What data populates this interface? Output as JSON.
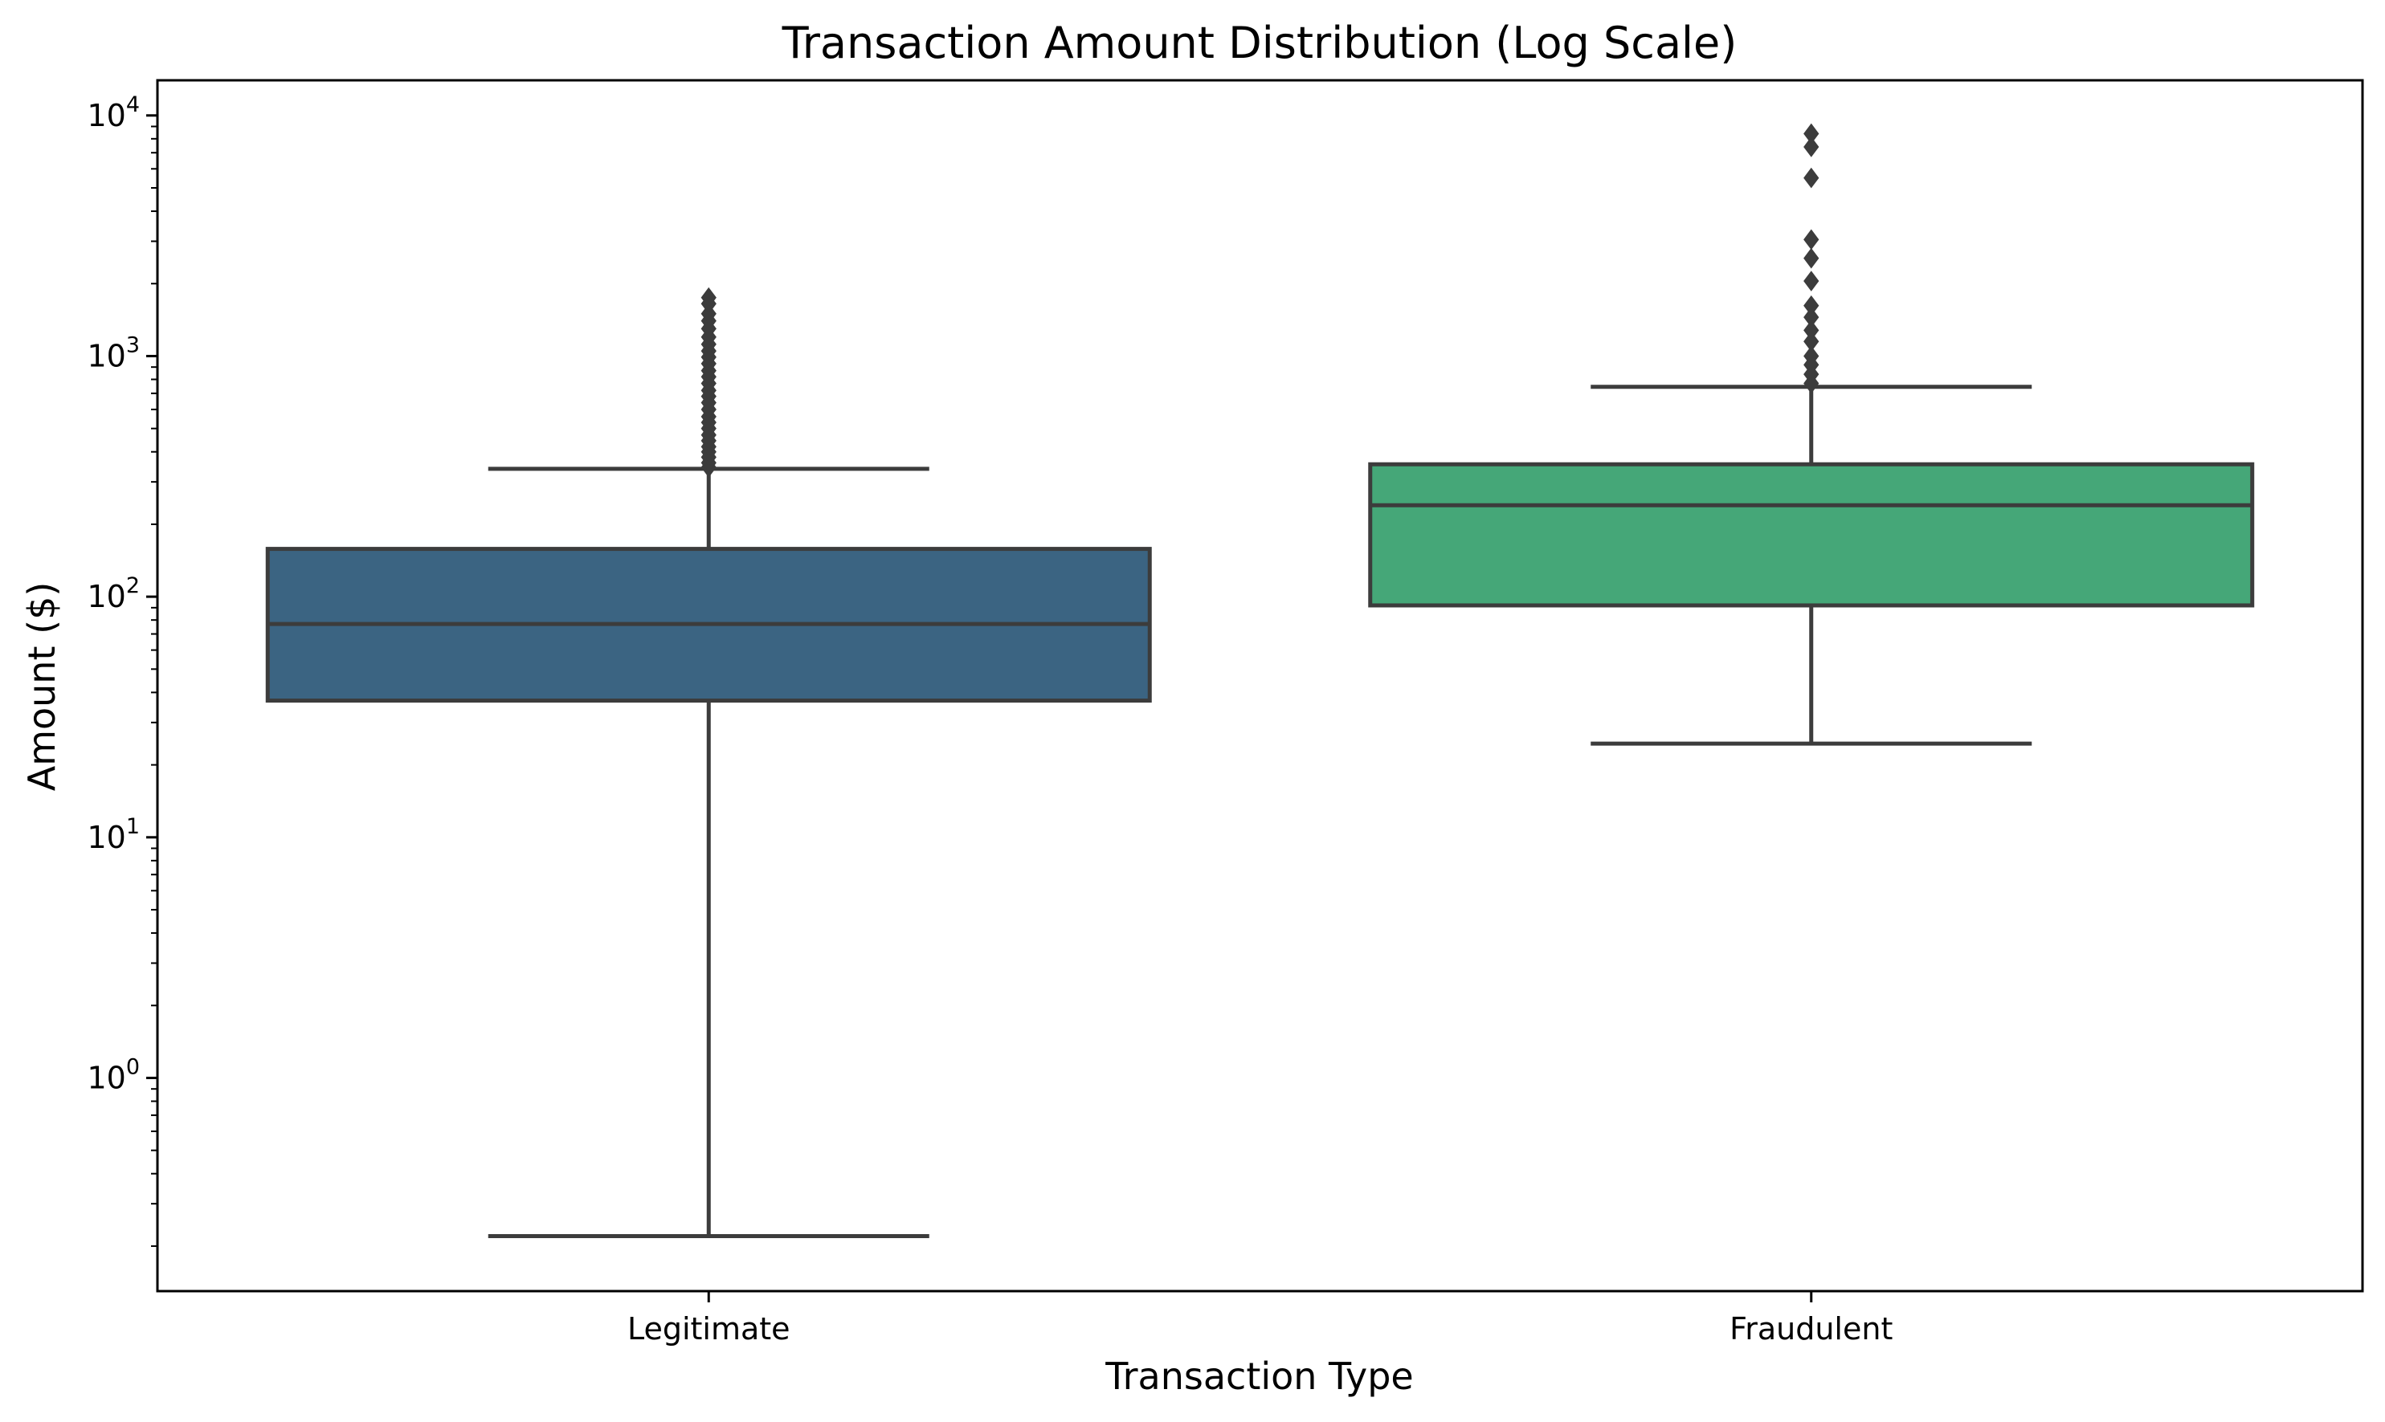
{
  "chart_data": {
    "type": "box",
    "title": "Transaction Amount Distribution (Log Scale)",
    "xlabel": "Transaction Type",
    "ylabel": "Amount ($)",
    "yscale": "log",
    "ylim": [
      0.13,
      14000
    ],
    "yticks": [
      {
        "value": 1,
        "base": "10",
        "exp": "0"
      },
      {
        "value": 10,
        "base": "10",
        "exp": "1"
      },
      {
        "value": 100,
        "base": "10",
        "exp": "2"
      },
      {
        "value": 1000,
        "base": "10",
        "exp": "3"
      },
      {
        "value": 10000,
        "base": "10",
        "exp": "4"
      }
    ],
    "grid": false,
    "legend": "none",
    "categories": [
      "Legitimate",
      "Fraudulent"
    ],
    "boxes": [
      {
        "category": "Legitimate",
        "color": "#3b6482",
        "whisker_low": 0.22,
        "q1": 37,
        "median": 77,
        "q3": 158,
        "whisker_high": 340,
        "outliers": [
          345,
          360,
          380,
          400,
          420,
          445,
          470,
          500,
          530,
          560,
          600,
          640,
          680,
          720,
          770,
          820,
          870,
          930,
          990,
          1050,
          1120,
          1200,
          1300,
          1400,
          1500,
          1650,
          1750
        ]
      },
      {
        "category": "Fraudulent",
        "color": "#45a778",
        "whisker_low": 24.5,
        "q1": 92,
        "median": 240,
        "q3": 355,
        "whisker_high": 745,
        "outliers": [
          770,
          840,
          920,
          1000,
          1150,
          1280,
          1450,
          1620,
          2050,
          2550,
          3050,
          5500,
          7400,
          8400
        ]
      }
    ],
    "edge_color": "#3c3c3c"
  }
}
